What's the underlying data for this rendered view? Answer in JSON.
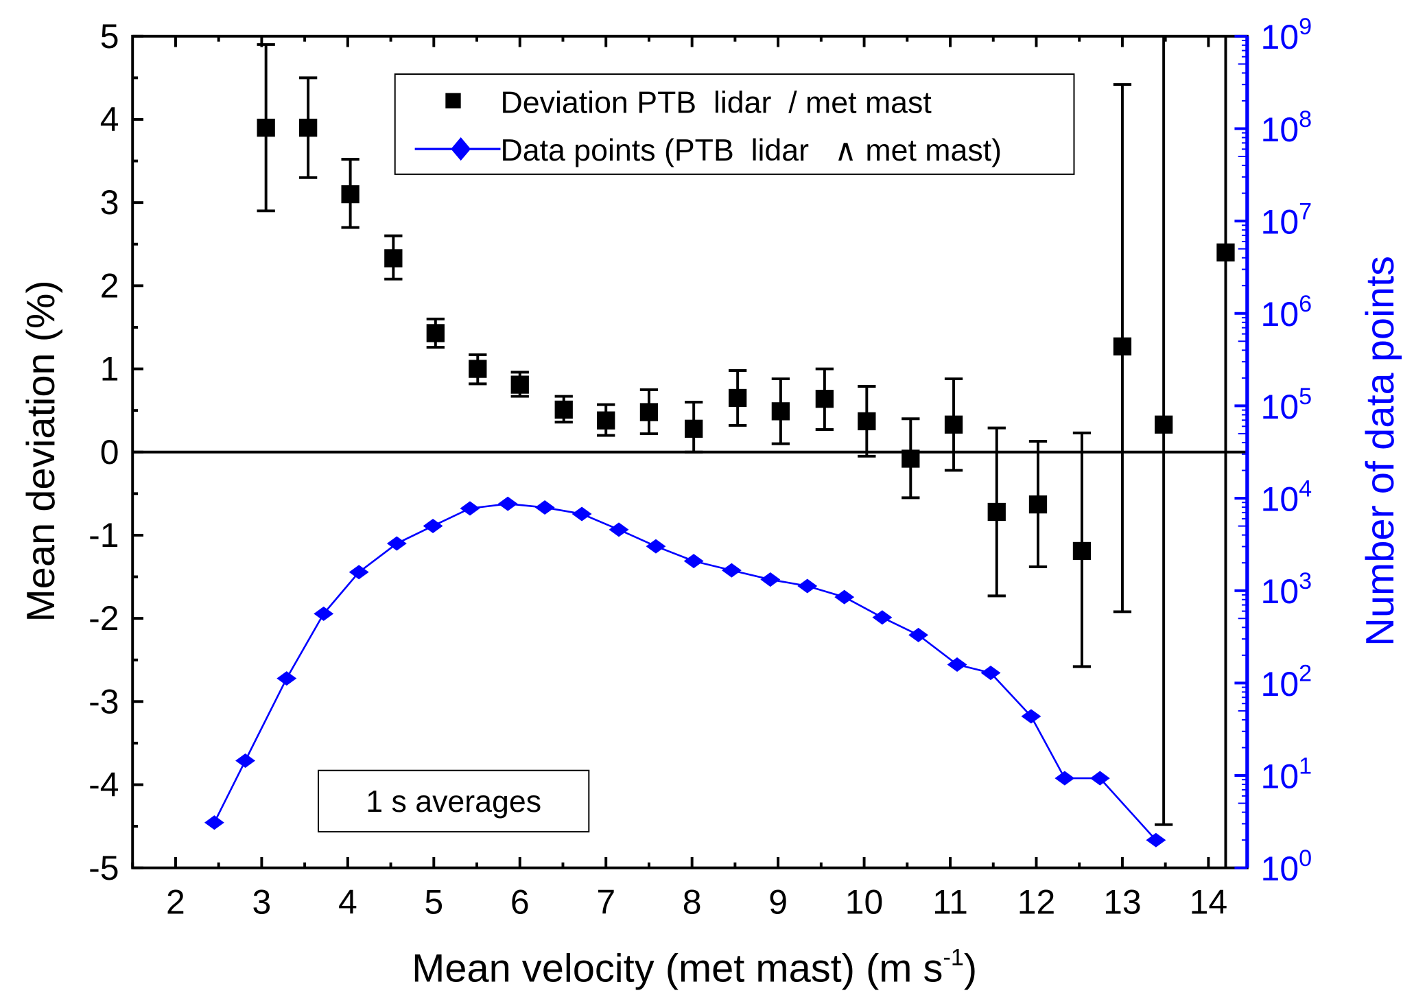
{
  "chart_data": {
    "type": "scatter",
    "xlabel": "Mean velocity (met mast) (m s",
    "xlabel_sup": "-1",
    "xlabel_end": ")",
    "ylabel": "Mean deviation (%)",
    "y2label": "Number of data points",
    "xlim": [
      1.5,
      14.45
    ],
    "ylim": [
      -5,
      5
    ],
    "y2lim_log10": [
      0,
      9
    ],
    "y2scale": "log",
    "x_ticks": [
      "2",
      "3",
      "4",
      "5",
      "6",
      "7",
      "8",
      "9",
      "10",
      "11",
      "12",
      "13",
      "14"
    ],
    "y_ticks": [
      "-5",
      "-4",
      "-3",
      "-2",
      "-1",
      "0",
      "1",
      "2",
      "3",
      "4",
      "5"
    ],
    "y2_ticks": [
      "0",
      "1",
      "2",
      "3",
      "4",
      "5",
      "6",
      "7",
      "8",
      "9"
    ],
    "y2_tick_base": "10",
    "legend": {
      "placement": "top-center",
      "entries": [
        "Deviation PTB  lidar  / met mast",
        "Data points (PTB  lidar   ∧ met mast)"
      ]
    },
    "annotation": "1 s averages",
    "colors": {
      "deviation": "#000000",
      "data_points": "#0000ff",
      "right_axis": "#0000ff"
    },
    "series": [
      {
        "name": "Deviation PTB lidar / met mast",
        "axis": "left",
        "marker": "square",
        "x": [
          3.05,
          3.54,
          4.03,
          4.53,
          5.02,
          5.51,
          6.0,
          6.51,
          7.0,
          7.5,
          8.02,
          8.53,
          9.03,
          9.54,
          10.03,
          10.54,
          11.04,
          11.54,
          12.02,
          12.53,
          13.0,
          13.48,
          14.2
        ],
        "y": [
          3.9,
          3.9,
          3.1,
          2.33,
          1.43,
          1.0,
          0.81,
          0.51,
          0.38,
          0.48,
          0.28,
          0.65,
          0.49,
          0.64,
          0.37,
          -0.08,
          0.33,
          -0.72,
          -0.63,
          -1.19,
          1.27,
          0.33,
          2.4
        ],
        "y_low": [
          2.9,
          3.3,
          2.7,
          2.08,
          1.26,
          0.82,
          0.67,
          0.36,
          0.2,
          0.22,
          0.0,
          0.32,
          0.1,
          0.27,
          -0.05,
          -0.55,
          -0.22,
          -1.73,
          -1.38,
          -2.58,
          -1.92,
          -4.48,
          -5
        ],
        "y_high": [
          4.9,
          4.5,
          3.52,
          2.6,
          1.6,
          1.17,
          0.96,
          0.67,
          0.57,
          0.75,
          0.6,
          0.98,
          0.88,
          1.0,
          0.79,
          0.4,
          0.88,
          0.29,
          0.13,
          0.23,
          4.42,
          5,
          5
        ]
      },
      {
        "name": "Data points (PTB lidar ∧ met mast)",
        "axis": "right",
        "marker": "diamond",
        "x": [
          2.45,
          2.81,
          3.29,
          3.72,
          4.13,
          4.57,
          4.99,
          5.42,
          5.86,
          6.29,
          6.72,
          7.15,
          7.58,
          8.02,
          8.46,
          8.91,
          9.34,
          9.77,
          10.21,
          10.63,
          11.08,
          11.47,
          11.94,
          12.33,
          12.74,
          13.39
        ],
        "log10_y": [
          0.49,
          1.16,
          2.05,
          2.75,
          3.2,
          3.51,
          3.7,
          3.89,
          3.94,
          3.9,
          3.83,
          3.66,
          3.48,
          3.32,
          3.22,
          3.12,
          3.05,
          2.93,
          2.71,
          2.52,
          2.2,
          2.11,
          1.64,
          0.97,
          0.97,
          0.3
        ]
      }
    ]
  }
}
